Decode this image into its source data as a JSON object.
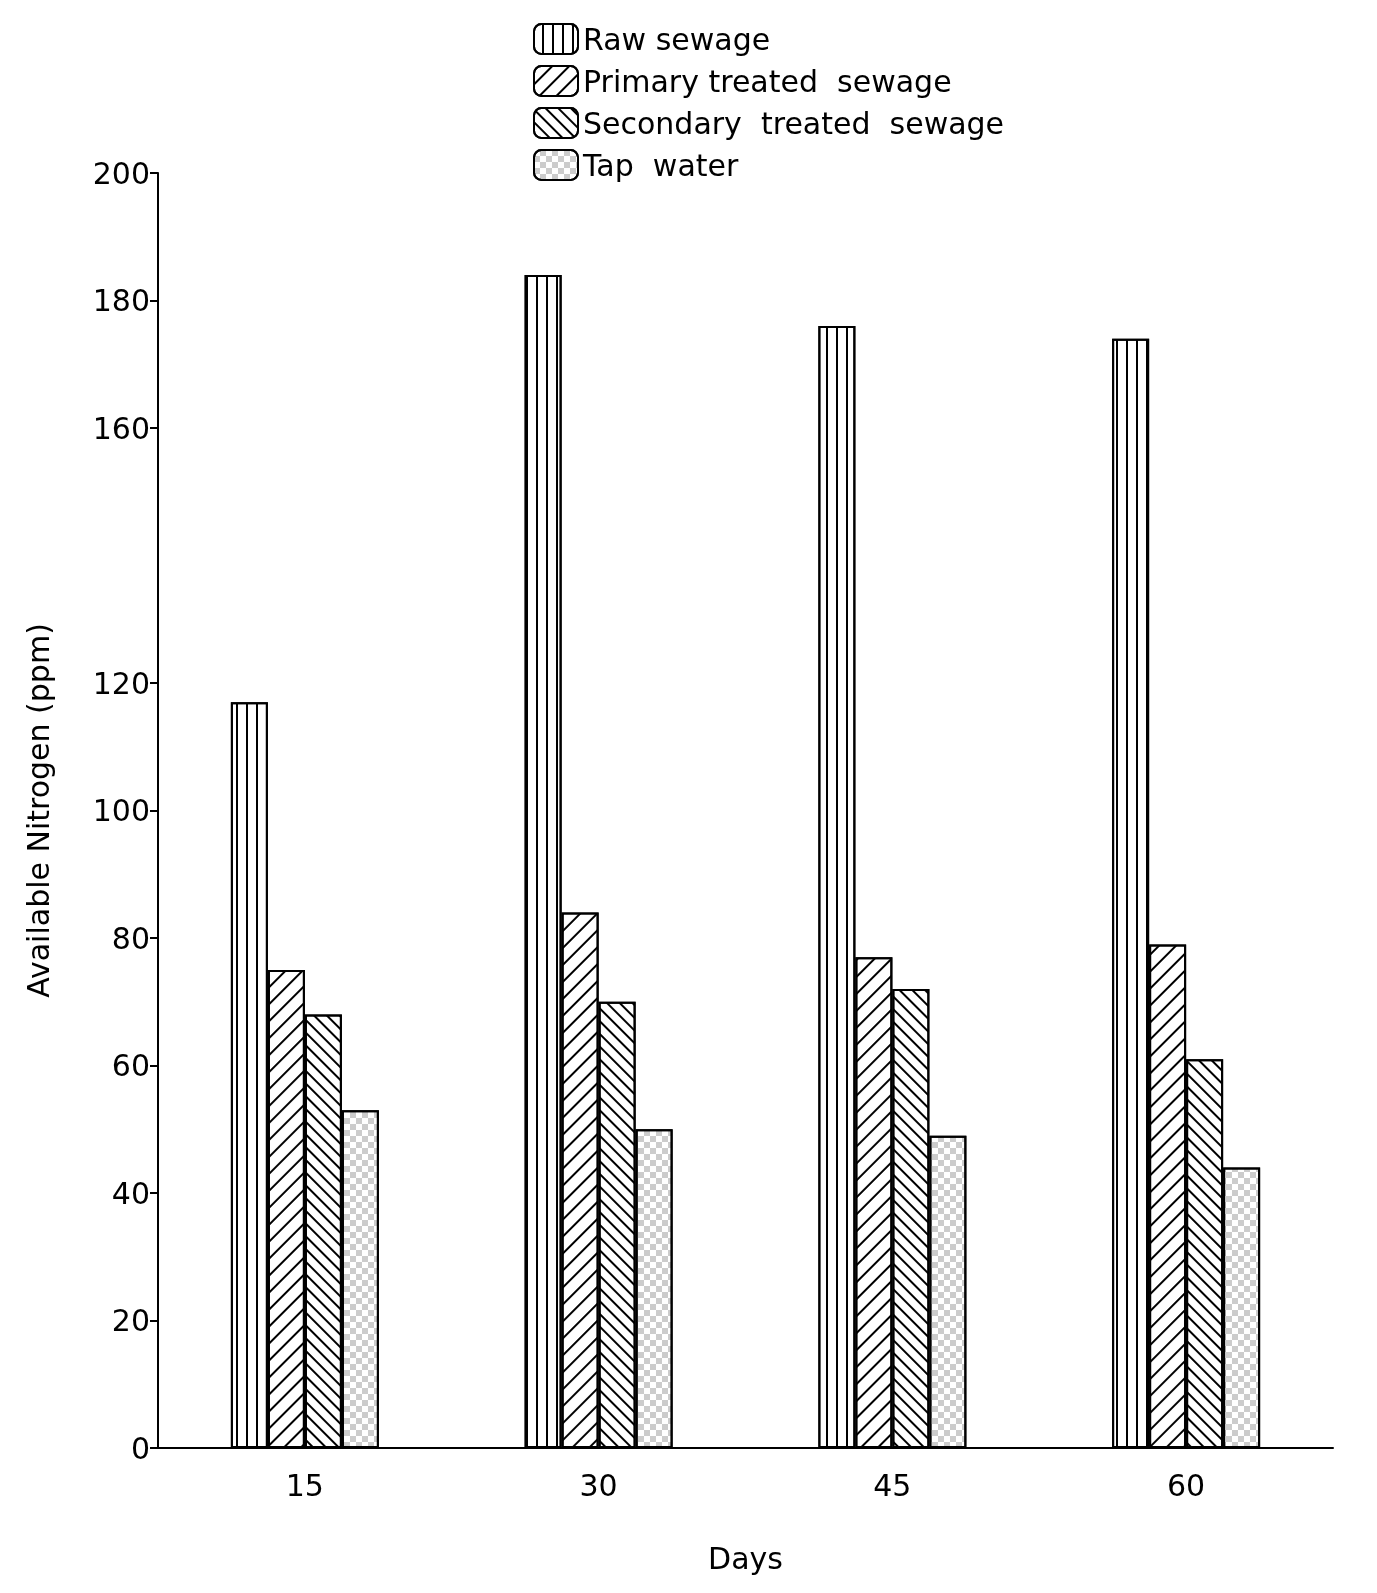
{
  "chart_data": {
    "type": "bar",
    "xlabel": "Days",
    "ylabel": "Available Nitrogen (ppm)",
    "categories": [
      "15",
      "30",
      "45",
      "60"
    ],
    "series": [
      {
        "name": "Raw sewage",
        "color": "#ffffff",
        "values": [
          117,
          184,
          176,
          174
        ]
      },
      {
        "name": "Primary treated  sewage",
        "color": "#ffffff",
        "values": [
          75,
          84,
          77,
          79
        ]
      },
      {
        "name": "Secondary  treated  sewage",
        "color": "#ffffff",
        "values": [
          68,
          70,
          72,
          61
        ]
      },
      {
        "name": "Tap  water",
        "color": "#ffffff",
        "values": [
          53,
          50,
          49,
          44
        ]
      }
    ],
    "ylim": [
      0,
      200
    ],
    "yticks": [
      0,
      20,
      40,
      60,
      80,
      100,
      120,
      160,
      180,
      200
    ],
    "grid": false,
    "legend": "top"
  }
}
